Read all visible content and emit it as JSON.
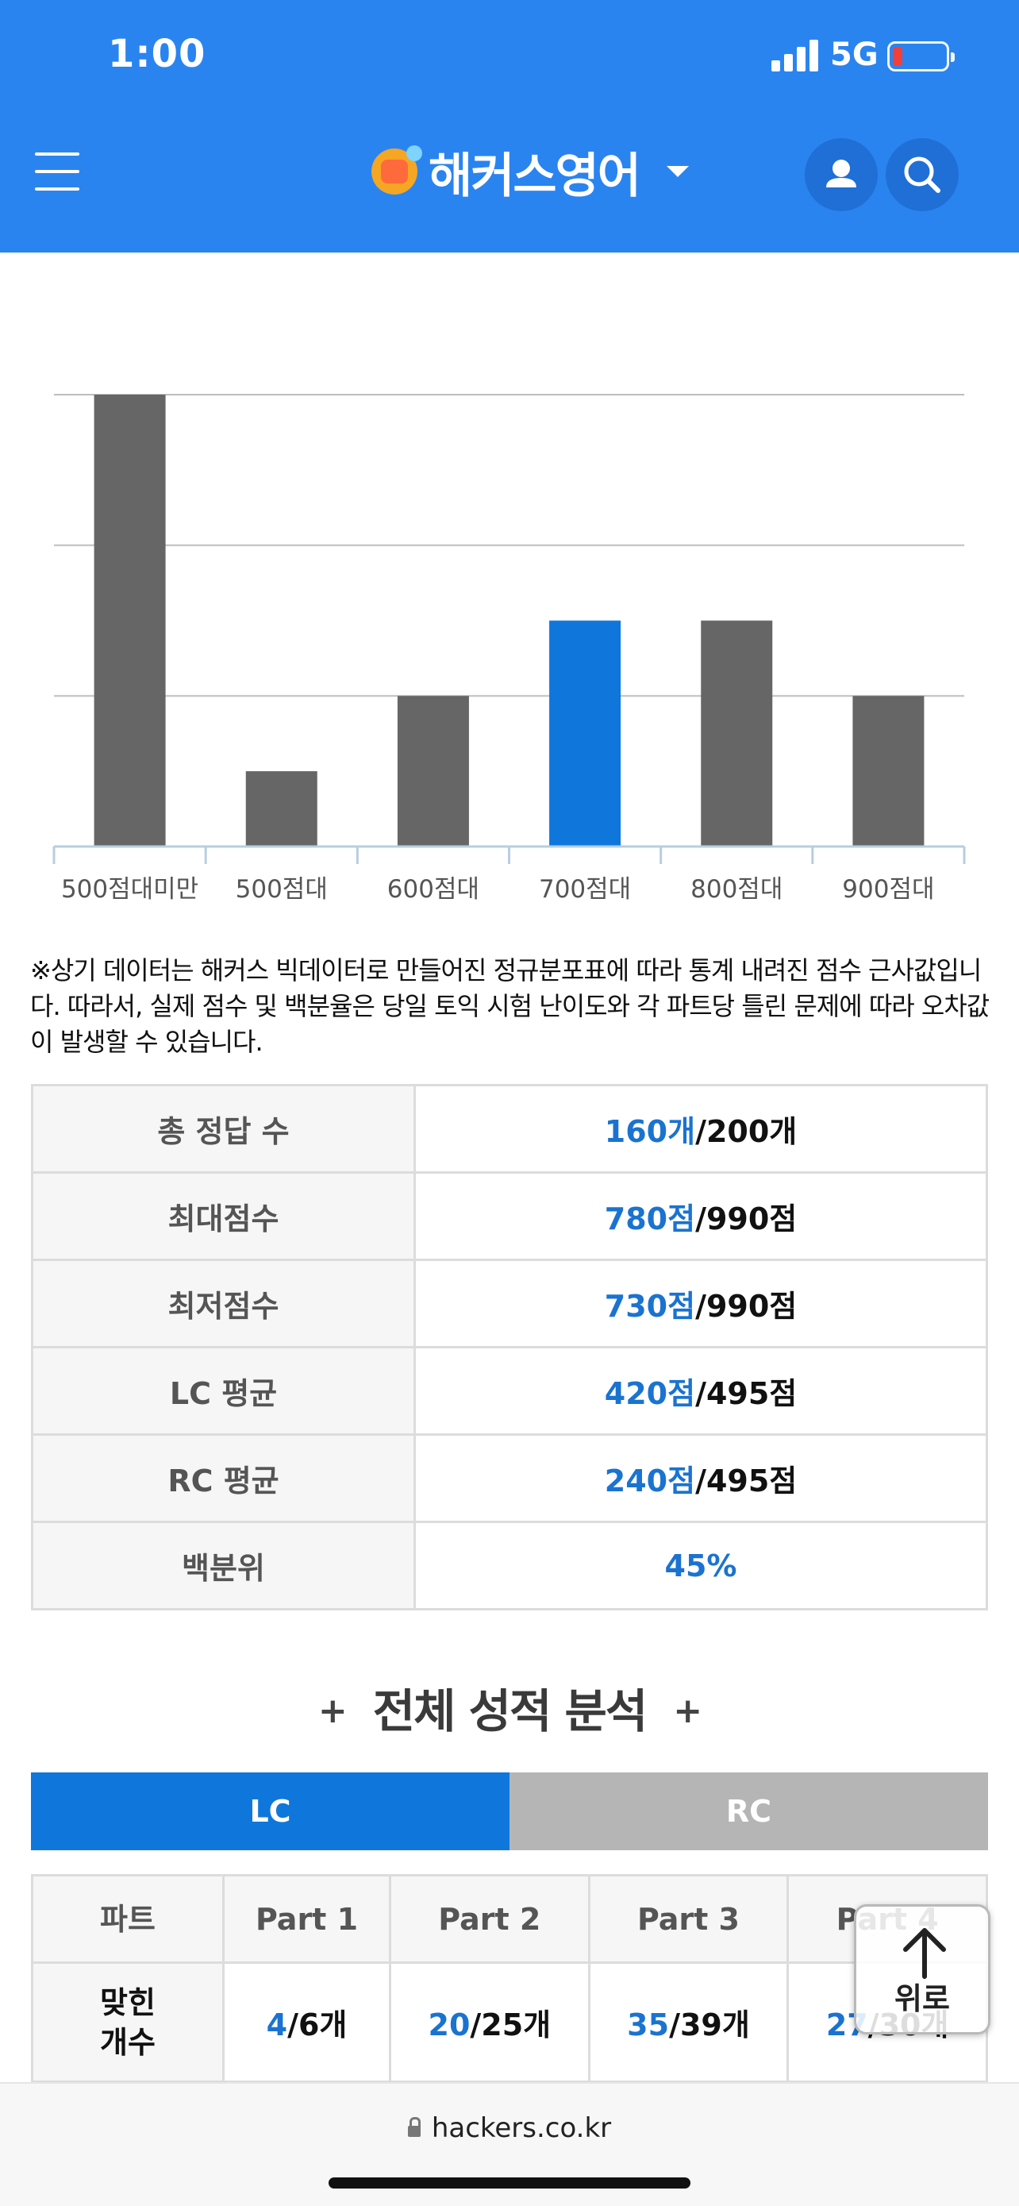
{
  "status_bar": {
    "time": "1:00",
    "network": "5G"
  },
  "header": {
    "logo_text": "해커스영어"
  },
  "chart_data": {
    "type": "bar",
    "categories": [
      "500점대미만",
      "500점대",
      "600점대",
      "700점대",
      "800점대",
      "900점대"
    ],
    "values": [
      6,
      1,
      2,
      3,
      3,
      2
    ],
    "ylim": [
      0,
      6
    ],
    "highlight_index": 3,
    "colors": {
      "default": "#666666",
      "highlight": "#0f77db",
      "grid": "#bdbdbd",
      "axis": "#b8cde2",
      "label": "#555555"
    },
    "grid": true
  },
  "note": "※상기 데이터는 해커스 빅데이터로 만들어진 정규분포표에 따라 통계 내려진 점수 근사값입니다. 따라서, 실제 점수 및 백분율은 당일 토익 시험 난이도와 각 파트당 틀린 문제에 따라 오차값이 발생할 수 있습니다.",
  "summary": {
    "rows": [
      {
        "label": "총 정답 수",
        "value": "160개",
        "total": "/200개"
      },
      {
        "label": "최대점수",
        "value": "780점",
        "total": "/990점"
      },
      {
        "label": "최저점수",
        "value": "730점",
        "total": "/990점"
      },
      {
        "label": "LC 평균",
        "value": "420점",
        "total": "/495점"
      },
      {
        "label": "RC 평균",
        "value": "240점",
        "total": "/495점"
      },
      {
        "label": "백분위",
        "value": "45%",
        "total": ""
      }
    ]
  },
  "analysis": {
    "title": "전체 성적 분석",
    "plus": "+",
    "tabs": {
      "lc": "LC",
      "rc": "RC"
    },
    "part_header": "파트",
    "correct_label_1": "맞힌",
    "correct_label_2": "개수",
    "parts": [
      {
        "name": "Part 1",
        "correct": "4",
        "total": "/6개"
      },
      {
        "name": "Part 2",
        "correct": "20",
        "total": "/25개"
      },
      {
        "name": "Part 3",
        "correct": "35",
        "total": "/39개"
      },
      {
        "name": "Part 4",
        "correct": "27",
        "total": "/30개"
      }
    ]
  },
  "scroll_top": {
    "label": "위로"
  },
  "browser": {
    "url": "hackers.co.kr"
  }
}
